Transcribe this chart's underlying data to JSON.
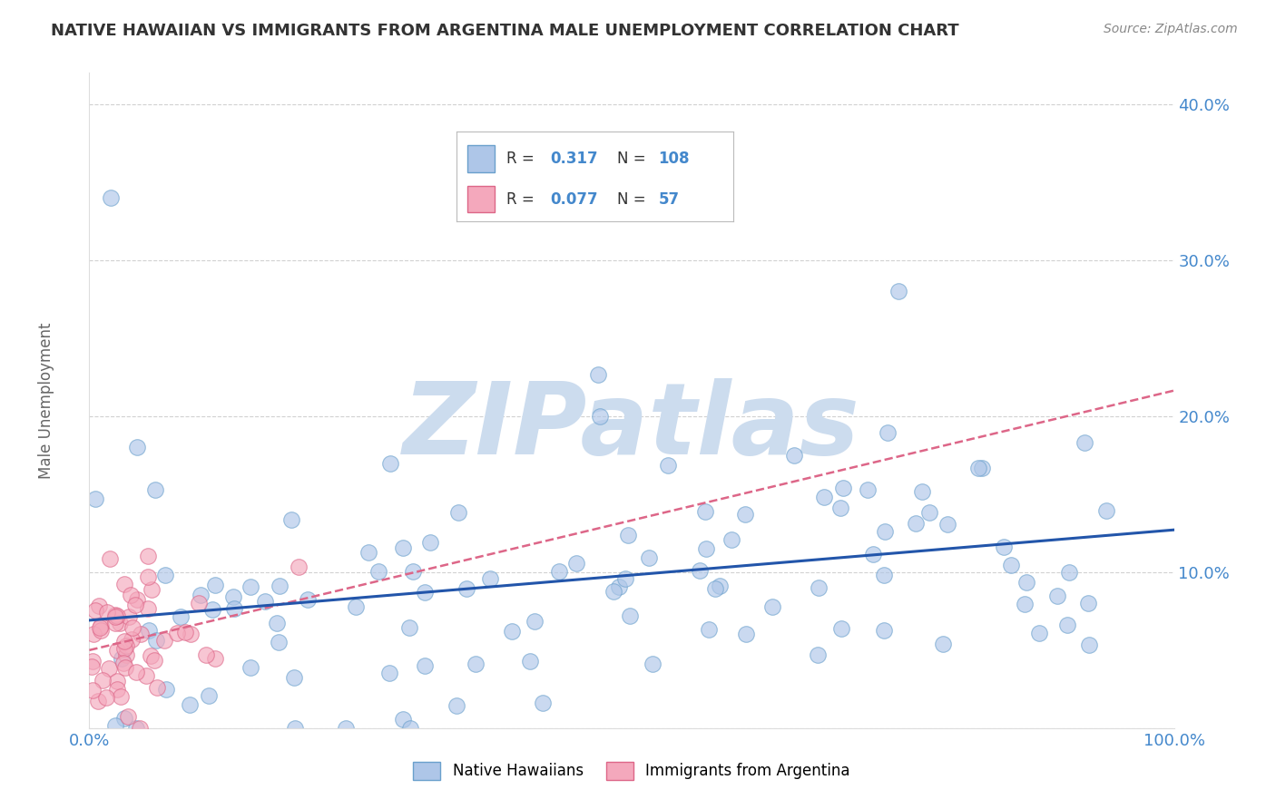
{
  "title": "NATIVE HAWAIIAN VS IMMIGRANTS FROM ARGENTINA MALE UNEMPLOYMENT CORRELATION CHART",
  "source": "Source: ZipAtlas.com",
  "ylabel": "Male Unemployment",
  "xlim": [
    0,
    1
  ],
  "ylim": [
    0,
    0.42
  ],
  "yticks": [
    0.0,
    0.1,
    0.2,
    0.3,
    0.4
  ],
  "ytick_labels": [
    "",
    "10.0%",
    "20.0%",
    "30.0%",
    "40.0%"
  ],
  "xtick_labels": [
    "0.0%",
    "100.0%"
  ],
  "series1_name": "Native Hawaiians",
  "series1_color": "#aec6e8",
  "series1_edge_color": "#6aa0cc",
  "series1_R": 0.317,
  "series1_N": 108,
  "series1_line_color": "#2255aa",
  "series2_name": "Immigrants from Argentina",
  "series2_color": "#f4a8bc",
  "series2_edge_color": "#dd6688",
  "series2_R": 0.077,
  "series2_N": 57,
  "series2_line_color": "#dd6688",
  "watermark": "ZIPatlas",
  "watermark_color": "#ccdcee",
  "background_color": "#ffffff",
  "grid_color": "#cccccc",
  "title_color": "#333333",
  "axis_tick_color": "#4488cc",
  "text_dark": "#333333",
  "seed": 42
}
